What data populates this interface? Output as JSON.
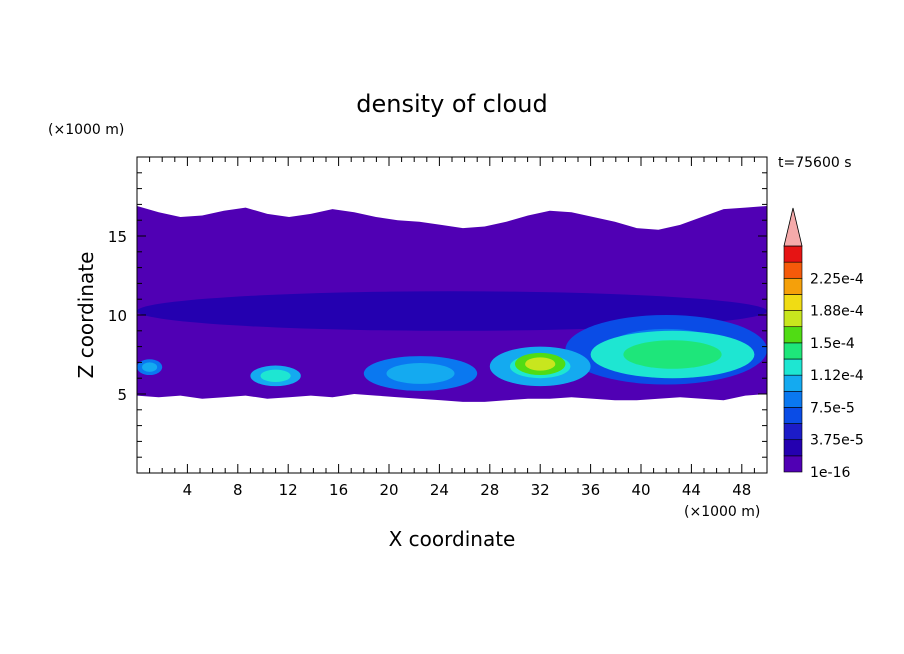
{
  "chart_data": {
    "type": "heatmap",
    "title": "density of cloud",
    "xlabel": "X coordinate",
    "ylabel": "Z coordinate",
    "x_unit": "(×1000 m)",
    "y_unit": "(×1000 m)",
    "time_label": "t=75600 s",
    "xlim": [
      0,
      50
    ],
    "ylim": [
      0,
      20
    ],
    "x_ticks": [
      4,
      8,
      12,
      16,
      20,
      24,
      28,
      32,
      36,
      40,
      44,
      48
    ],
    "y_ticks": [
      5,
      10,
      15
    ],
    "colorbar": {
      "labels": [
        "1e-16",
        "3.75e-5",
        "7.5e-5",
        "1.12e-4",
        "1.5e-4",
        "1.88e-4",
        "2.25e-4"
      ],
      "levels": [
        1e-16,
        1.875e-05,
        3.75e-05,
        5.6e-05,
        7.5e-05,
        9.4e-05,
        0.000112,
        0.000131,
        0.00015,
        0.000169,
        0.000188,
        0.000206,
        0.000225,
        0.000244
      ],
      "colors": [
        "#5000b4",
        "#2400b0",
        "#1c1cc8",
        "#0a4ce6",
        "#0a78f0",
        "#14aaf0",
        "#1ee6d2",
        "#1ee67a",
        "#50dc14",
        "#c8e61e",
        "#f0dc14",
        "#f5a00a",
        "#f55a0a",
        "#e61414"
      ],
      "overflow_color": "#f5aaaa"
    },
    "cloud_top_z": [
      16.9,
      16.5,
      16.2,
      16.3,
      16.6,
      16.8,
      16.4,
      16.2,
      16.4,
      16.7,
      16.5,
      16.2,
      16.0,
      15.9,
      15.7,
      15.5,
      15.6,
      15.9,
      16.3,
      16.6,
      16.5,
      16.2,
      15.9,
      15.5,
      15.4,
      15.7,
      16.2,
      16.7,
      16.8,
      16.9
    ],
    "cloud_base_z": [
      4.9,
      4.8,
      4.9,
      4.7,
      4.8,
      4.9,
      4.7,
      4.8,
      4.9,
      4.8,
      5.0,
      4.9,
      4.8,
      4.7,
      4.6,
      4.5,
      4.5,
      4.6,
      4.7,
      4.7,
      4.8,
      4.7,
      4.6,
      4.6,
      4.7,
      4.8,
      4.7,
      4.6,
      4.9,
      5.0
    ],
    "features": [
      {
        "x": [
          0,
          50
        ],
        "z": [
          9.0,
          11.5
        ],
        "level": 1
      },
      {
        "x": [
          34,
          50
        ],
        "z": [
          5.6,
          10.0
        ],
        "level": 3
      },
      {
        "x": [
          18,
          27
        ],
        "z": [
          5.2,
          7.4
        ],
        "level": 4
      },
      {
        "x": [
          28,
          36
        ],
        "z": [
          5.5,
          8.0
        ],
        "level": 5
      },
      {
        "x": [
          30,
          34
        ],
        "z": [
          6.2,
          7.6
        ],
        "level": 8
      },
      {
        "x": [
          36,
          49
        ],
        "z": [
          6.0,
          9.0
        ],
        "level": 6
      },
      {
        "x": [
          9,
          13
        ],
        "z": [
          5.5,
          6.8
        ],
        "level": 5
      },
      {
        "x": [
          0,
          2
        ],
        "z": [
          6.2,
          7.2
        ],
        "level": 4
      }
    ]
  }
}
